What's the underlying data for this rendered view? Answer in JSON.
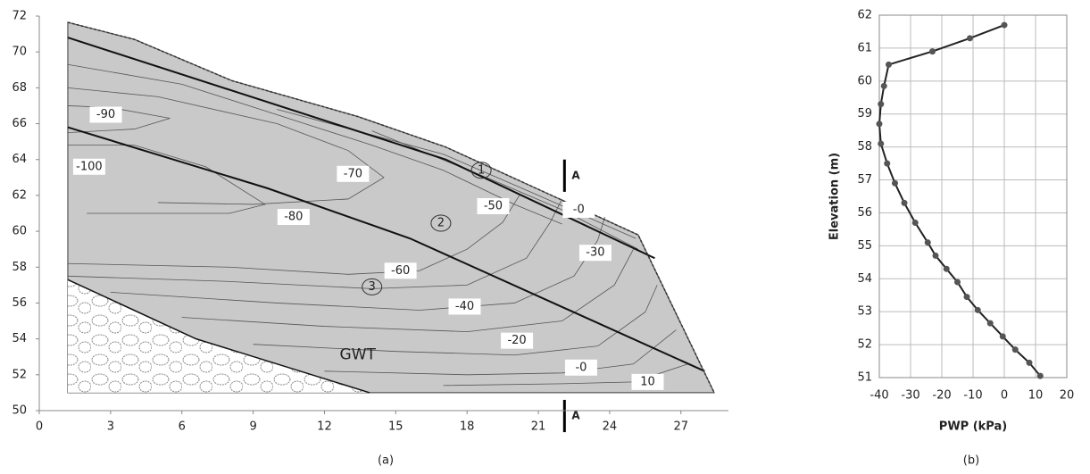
{
  "chart_data": [
    {
      "type": "contour",
      "xlim": [
        0,
        29
      ],
      "ylim": [
        50,
        72
      ],
      "xticks": [
        0,
        3,
        6,
        9,
        12,
        15,
        18,
        21,
        24,
        27
      ],
      "yticks": [
        50,
        52,
        54,
        56,
        58,
        60,
        62,
        64,
        66,
        68,
        70,
        72
      ],
      "boundary": {
        "x": [
          1.2,
          4.0,
          8.1,
          13.4,
          17.1,
          20.9,
          25.2,
          28.4,
          1.2
        ],
        "y": [
          71.65,
          70.7,
          68.4,
          66.4,
          64.7,
          62.4,
          59.8,
          51.0,
          51.0
        ]
      },
      "layers": [
        {
          "x": [
            1.2,
            17.1,
            25.9
          ],
          "y": [
            70.8,
            64.0,
            58.5
          ]
        },
        {
          "x": [
            1.2,
            9.6,
            15.6,
            28.0
          ],
          "y": [
            65.8,
            62.4,
            59.6,
            52.2
          ]
        }
      ],
      "gwt": {
        "x": [
          1.2,
          6.6,
          13.9
        ],
        "y": [
          57.3,
          54.0,
          51.0
        ]
      },
      "contour_lines": [
        {
          "x": [
            10,
            17,
            21,
            25.1
          ],
          "y": [
            66.8,
            64.3,
            62.0,
            59.6
          ]
        },
        {
          "x": [
            14,
            19,
            22,
            25.2
          ],
          "y": [
            65.6,
            62.9,
            61.2,
            59.0
          ]
        },
        {
          "x": [
            1.2,
            6,
            10,
            14,
            17,
            20,
            22
          ],
          "y": [
            69.3,
            68.2,
            66.5,
            64.8,
            63.4,
            61.5,
            60.4
          ]
        },
        {
          "x": [
            1.2,
            5,
            10,
            13,
            14.5,
            13,
            9,
            5
          ],
          "y": [
            68,
            67.5,
            66,
            64.5,
            63,
            61.8,
            61.5,
            61.6
          ]
        },
        {
          "x": [
            1.2,
            3,
            5.5,
            4,
            1.2
          ],
          "y": [
            67,
            66.9,
            66.3,
            65.7,
            65.5
          ]
        },
        {
          "x": [
            1.2,
            4,
            7,
            9.5,
            8,
            5,
            2
          ],
          "y": [
            64.8,
            64.8,
            63.6,
            61.5,
            61.0,
            61.0,
            61.0
          ]
        },
        {
          "x": [
            1.2,
            8,
            13,
            16,
            18,
            19.5,
            20.2
          ],
          "y": [
            58.2,
            58.0,
            57.6,
            57.8,
            59,
            60.5,
            62
          ]
        },
        {
          "x": [
            1.2,
            8,
            14,
            18,
            20.5,
            21.5,
            22
          ],
          "y": [
            57.5,
            57.2,
            56.8,
            57,
            58.5,
            60.5,
            61.8
          ]
        },
        {
          "x": [
            3,
            10,
            16,
            20,
            22.5,
            23.5,
            23.8
          ],
          "y": [
            56.6,
            56.0,
            55.6,
            56,
            57.5,
            59.5,
            60.8
          ]
        },
        {
          "x": [
            6,
            12,
            18,
            22,
            24.2,
            25
          ],
          "y": [
            55.2,
            54.7,
            54.4,
            55,
            57,
            59
          ]
        },
        {
          "x": [
            9,
            15,
            20,
            23.5,
            25.5,
            26
          ],
          "y": [
            53.7,
            53.3,
            53.1,
            53.6,
            55.5,
            57
          ]
        },
        {
          "x": [
            12,
            18,
            22,
            25,
            26.8
          ],
          "y": [
            52.2,
            52.0,
            52.1,
            52.6,
            54.5
          ]
        },
        {
          "x": [
            17,
            22,
            25,
            27.3
          ],
          "y": [
            51.4,
            51.5,
            51.6,
            52.6
          ]
        }
      ],
      "contour_labels": [
        {
          "value": -90,
          "x": 2.8,
          "y": 66.5
        },
        {
          "value": -100,
          "x": 2.1,
          "y": 63.6
        },
        {
          "value": -70,
          "x": 13.2,
          "y": 63.2
        },
        {
          "value": -80,
          "x": 10.7,
          "y": 60.8
        },
        {
          "value": -50,
          "x": 19.1,
          "y": 61.4
        },
        {
          "value": {
            "value": 0,
            "label": "-0"
          },
          "x": 22.7,
          "y": 61.2
        },
        {
          "value": -30,
          "x": 23.4,
          "y": 58.8
        },
        {
          "value": -60,
          "x": 15.2,
          "y": 57.8
        },
        {
          "value": -40,
          "x": 17.9,
          "y": 55.8
        },
        {
          "value": -20,
          "x": 20.1,
          "y": 53.9
        },
        {
          "value": {
            "value": 0,
            "label": "-0"
          },
          "x": 22.8,
          "y": 52.4
        },
        {
          "value": 10,
          "x": 25.6,
          "y": 51.6
        }
      ],
      "annotations": [
        {
          "text": "1",
          "x": 18.6,
          "y": 63.4,
          "circled": true
        },
        {
          "text": "2",
          "x": 16.9,
          "y": 60.45,
          "circled": true
        },
        {
          "text": "3",
          "x": 14.0,
          "y": 56.9,
          "circled": true
        },
        {
          "text": "GWT",
          "x": 13.4,
          "y": 53.1,
          "circled": false
        }
      ],
      "section": {
        "label": "A",
        "x": 22.1,
        "top": [
          62.2,
          64.0
        ],
        "bottom": [
          48.8,
          50.6
        ]
      },
      "caption": "(a)"
    },
    {
      "type": "line",
      "xlabel": "PWP (kPa)",
      "ylabel": "Elevation (m)",
      "xlim": [
        -40,
        20
      ],
      "ylim": [
        51,
        62
      ],
      "xticks": [
        -40,
        -30,
        -20,
        -10,
        0,
        10,
        20
      ],
      "yticks": [
        51,
        52,
        53,
        54,
        55,
        56,
        57,
        58,
        59,
        60,
        61,
        62
      ],
      "grid": true,
      "color": "#222222",
      "x": [
        0,
        -11,
        -23,
        -37,
        -38.5,
        -39.5,
        -40,
        -39.5,
        -37.5,
        -35,
        -32,
        -28.5,
        -24.5,
        -22,
        -18.5,
        -15,
        -12,
        -8.5,
        -4.5,
        -0.5,
        3.5,
        8,
        11.5
      ],
      "values": [
        61.7,
        61.3,
        60.9,
        60.5,
        59.85,
        59.3,
        58.7,
        58.1,
        57.5,
        56.9,
        56.3,
        55.7,
        55.1,
        54.7,
        54.3,
        53.9,
        53.45,
        53.05,
        52.65,
        52.25,
        51.85,
        51.45,
        51.05
      ],
      "caption": "(b)"
    }
  ]
}
